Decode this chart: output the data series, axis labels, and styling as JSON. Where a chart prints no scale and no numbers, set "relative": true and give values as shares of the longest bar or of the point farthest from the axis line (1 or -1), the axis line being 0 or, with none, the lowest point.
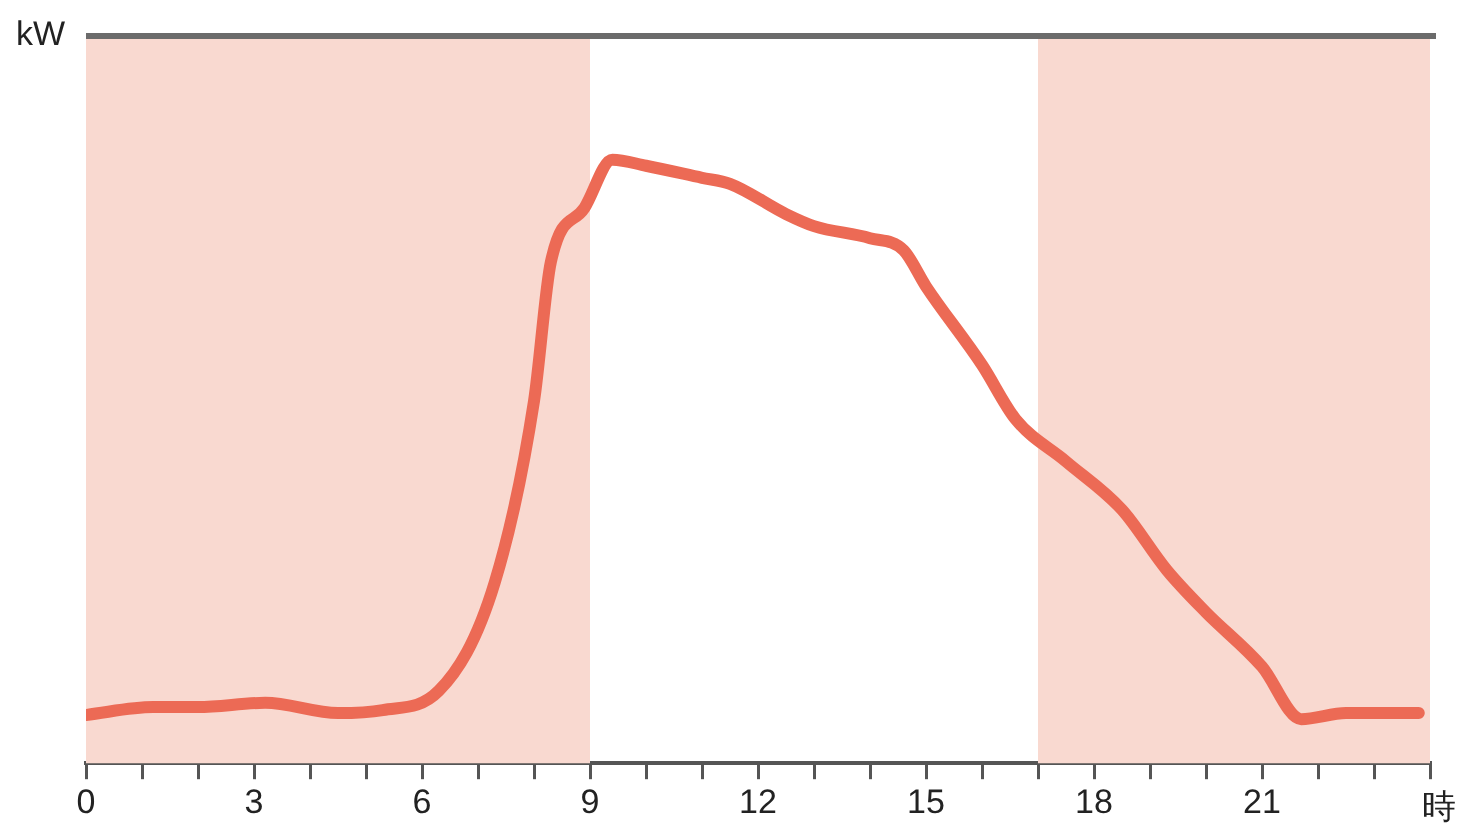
{
  "chart_data": {
    "type": "line",
    "relative": true,
    "ylabel": "kW",
    "xlabel": "時",
    "color": "#ec6a55",
    "marker": "none",
    "grid": false,
    "legend": false,
    "x": [
      0,
      1.2,
      2,
      3.2,
      4.5,
      5.3,
      6.3,
      7.3,
      8,
      8.3,
      8.9,
      9.4,
      10,
      11,
      11.5,
      12.5,
      13,
      14,
      14.6,
      15,
      16,
      16.6,
      17.5,
      18.5,
      19.3,
      20,
      21,
      21.7,
      22.5,
      23.8
    ],
    "values": [
      0.08,
      0.093,
      0.093,
      0.1,
      0.083,
      0.088,
      0.12,
      0.3,
      0.6,
      0.83,
      0.92,
      1.0,
      0.99,
      0.97,
      0.96,
      0.91,
      0.89,
      0.87,
      0.85,
      0.79,
      0.66,
      0.57,
      0.5,
      0.42,
      0.32,
      0.25,
      0.16,
      0.073,
      0.083,
      0.083
    ],
    "xlim": [
      0,
      24
    ],
    "xticks": [
      0,
      {
        "value": 1,
        "label": null
      },
      {
        "value": 2,
        "label": null
      },
      3,
      {
        "value": 4,
        "label": null
      },
      {
        "value": 5,
        "label": null
      },
      6,
      {
        "value": 7,
        "label": null
      },
      {
        "value": 8,
        "label": null
      },
      9,
      {
        "value": 10,
        "label": null
      },
      {
        "value": 11,
        "label": null
      },
      12,
      {
        "value": 13,
        "label": null
      },
      {
        "value": 14,
        "label": null
      },
      15,
      {
        "value": 16,
        "label": null
      },
      {
        "value": 17,
        "label": null
      },
      18,
      {
        "value": 19,
        "label": null
      },
      {
        "value": 20,
        "label": null
      },
      21,
      {
        "value": 22,
        "label": null
      },
      {
        "value": 23,
        "label": null
      },
      {
        "value": 24,
        "label": null
      }
    ],
    "bands": [
      {
        "axis": "x",
        "from": 0,
        "to": 9,
        "color": "#f9d9d0"
      },
      {
        "axis": "x",
        "from": 17,
        "to": 24,
        "color": "#f9d9d0"
      }
    ]
  }
}
